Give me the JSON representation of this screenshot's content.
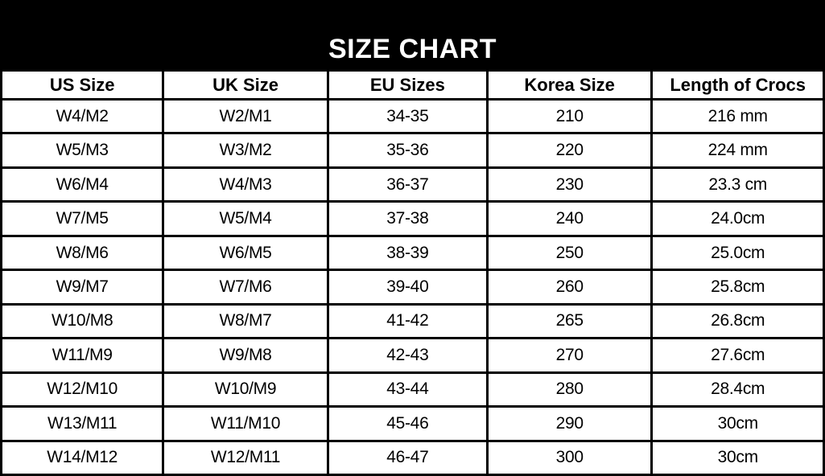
{
  "chart_data": {
    "type": "table",
    "title": "SIZE CHART",
    "columns": [
      "US Size",
      "UK Size",
      "EU Sizes",
      "Korea Size",
      "Length of Crocs"
    ],
    "rows": [
      [
        "W4/M2",
        "W2/M1",
        "34-35",
        "210",
        "216 mm"
      ],
      [
        "W5/M3",
        "W3/M2",
        "35-36",
        "220",
        "224 mm"
      ],
      [
        "W6/M4",
        "W4/M3",
        "36-37",
        "230",
        "23.3 cm"
      ],
      [
        "W7/M5",
        "W5/M4",
        "37-38",
        "240",
        "24.0cm"
      ],
      [
        "W8/M6",
        "W6/M5",
        "38-39",
        "250",
        "25.0cm"
      ],
      [
        "W9/M7",
        "W7/M6",
        "39-40",
        "260",
        "25.8cm"
      ],
      [
        "W10/M8",
        "W8/M7",
        "41-42",
        "265",
        "26.8cm"
      ],
      [
        "W11/M9",
        "W9/M8",
        "42-43",
        "270",
        "27.6cm"
      ],
      [
        "W12/M10",
        "W10/M9",
        "43-44",
        "280",
        "28.4cm"
      ],
      [
        "W13/M11",
        "W11/M10",
        "45-46",
        "290",
        "30cm"
      ],
      [
        "W14/M12",
        "W12/M11",
        "46-47",
        "300",
        "30cm"
      ]
    ],
    "layout": {
      "header_band": "black with white centered title",
      "grid": "on",
      "column_width_percents": [
        19.7,
        20.0,
        19.4,
        20.0,
        20.9
      ]
    }
  },
  "colors": {
    "band_bg": "#000000",
    "title_text": "#ffffff",
    "border": "#000000",
    "cell_bg": "#ffffff",
    "text": "#000000"
  }
}
